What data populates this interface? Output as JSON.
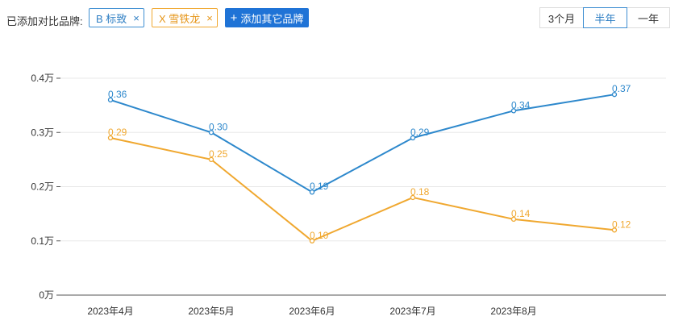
{
  "filter": {
    "label": "已添加对比品牌:",
    "chips": [
      {
        "text": "B 标致",
        "close": "×",
        "color": "#2f7fc4"
      },
      {
        "text": "X 雪铁龙",
        "close": "×",
        "color": "#e6961a"
      }
    ],
    "add_button": {
      "plus": "+",
      "label": "添加其它品牌"
    }
  },
  "range": {
    "options": [
      "3个月",
      "半年",
      "一年"
    ],
    "selected": "半年"
  },
  "chart_data": {
    "type": "line",
    "categories": [
      "2023年4月",
      "2023年5月",
      "2023年6月",
      "2023年7月",
      "2023年8月",
      ""
    ],
    "ylim": [
      0,
      0.4
    ],
    "yticks": [
      0,
      0.1,
      0.2,
      0.3,
      0.4
    ],
    "ytick_labels": [
      "0万",
      "0.1万",
      "0.2万",
      "0.3万",
      "0.4万"
    ],
    "grid": true,
    "series": [
      {
        "values": [
          0.36,
          0.3,
          0.19,
          0.29,
          0.34,
          0.37
        ],
        "labels": [
          "0.36",
          "0.30",
          "0.19",
          "0.29",
          "0.34",
          "0.37"
        ],
        "color": "#2d88cc"
      },
      {
        "values": [
          0.29,
          0.25,
          0.1,
          0.18,
          0.14,
          0.12
        ],
        "labels": [
          "0.29",
          "0.25",
          "0.10",
          "0.18",
          "0.14",
          "0.12"
        ],
        "color": "#f0a830"
      }
    ]
  }
}
